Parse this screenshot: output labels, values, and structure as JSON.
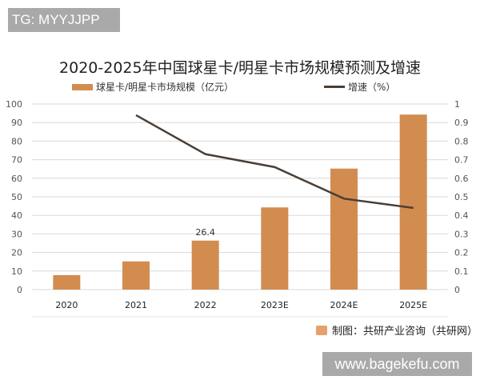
{
  "watermark_top": "TG: MYYJJPP",
  "watermark_bottom": "www.bagekefu.com",
  "source": "制图：共研产业咨询（共研网）",
  "chart_data": {
    "type": "bar",
    "title": "2020-2025年中国球星卡/明星卡市场规模预测及增速",
    "categories": [
      "2020",
      "2021",
      "2022",
      "2023E",
      "2024E",
      "2025E"
    ],
    "series": [
      {
        "name": "球星卡/明星卡市场规模（亿元）",
        "type": "bar",
        "axis": "left",
        "color": "#D28C4F",
        "values": [
          7.8,
          15.2,
          26.4,
          44.3,
          65.2,
          94.3
        ]
      },
      {
        "name": "增速（%）",
        "type": "line",
        "axis": "right",
        "color": "#4a3f36",
        "values": [
          null,
          0.94,
          0.73,
          0.66,
          0.49,
          0.44
        ]
      }
    ],
    "data_labels": [
      {
        "category": "2022",
        "text": "26.4"
      }
    ],
    "y_left": {
      "min": 0,
      "max": 100,
      "ticks": [
        "0",
        "10",
        "20",
        "30",
        "40",
        "50",
        "60",
        "70",
        "80",
        "90",
        "100"
      ]
    },
    "y_right": {
      "min": 0,
      "max": 1,
      "ticks": [
        "0",
        "0.1",
        "0.2",
        "0.3",
        "0.4",
        "0.5",
        "0.6",
        "0.7",
        "0.8",
        "0.9",
        "1"
      ]
    },
    "grid": true,
    "legend_position": "top"
  }
}
